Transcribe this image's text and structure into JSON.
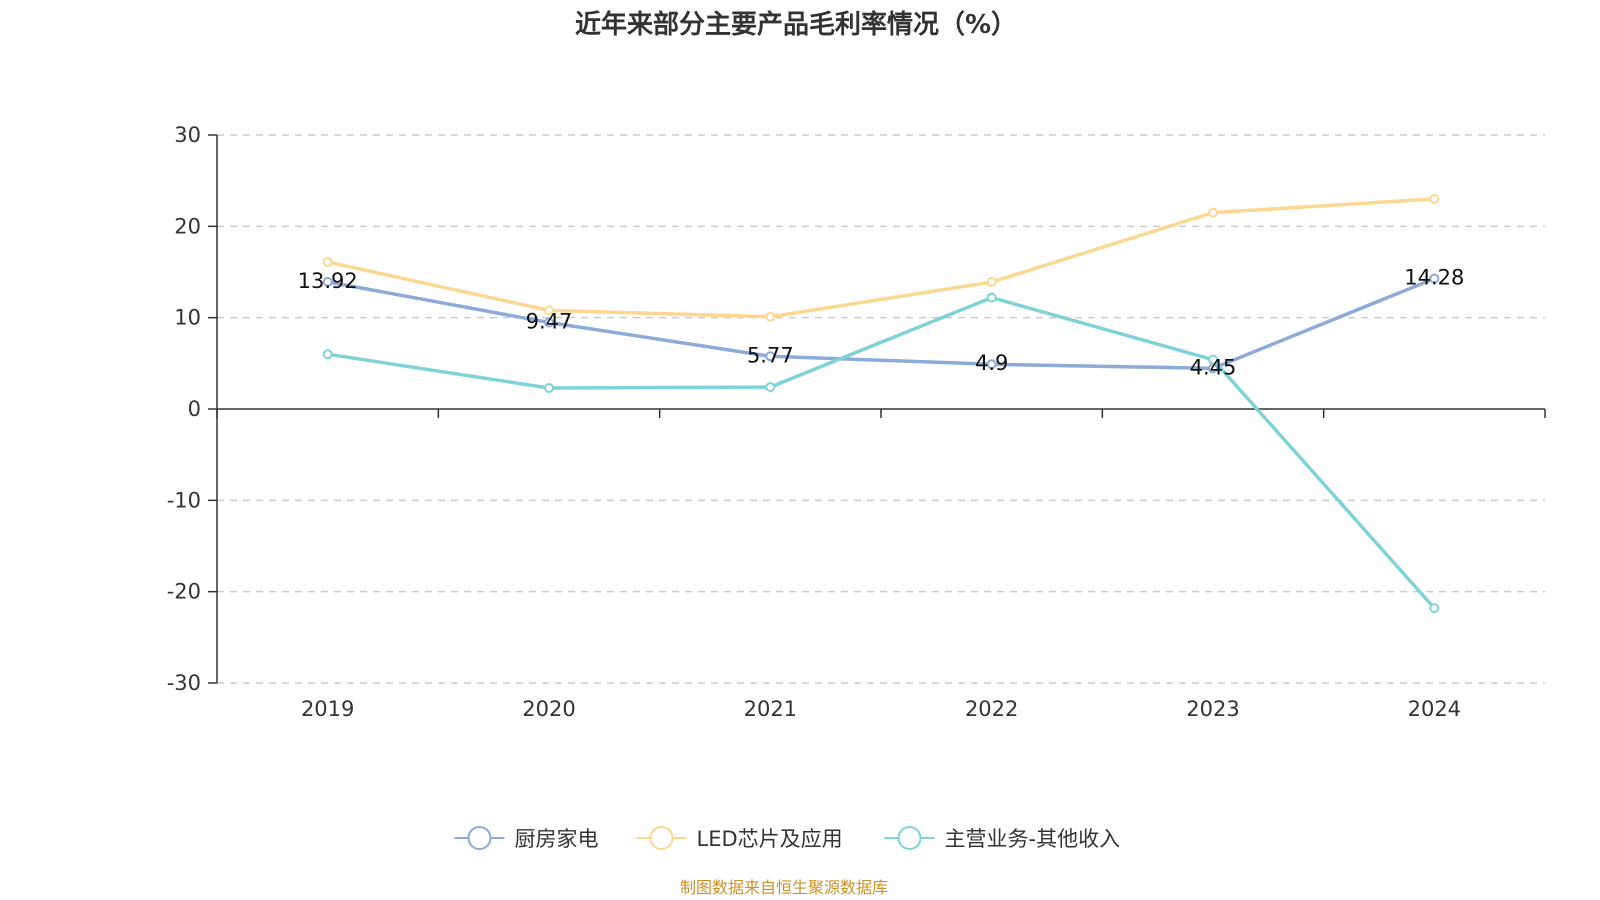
{
  "chart_data": {
    "type": "line",
    "title": "近年来部分主要产品毛利率情况（%）",
    "categories": [
      "2019",
      "2020",
      "2021",
      "2022",
      "2023",
      "2024"
    ],
    "ylim": [
      -30,
      30
    ],
    "yticks": [
      30,
      20,
      10,
      0,
      -10,
      -20,
      -30
    ],
    "grid": true,
    "legend_position": "bottom",
    "series": [
      {
        "name": "厨房家电",
        "color": "#8eaad6",
        "values": [
          13.92,
          9.47,
          5.77,
          4.9,
          4.45,
          14.28
        ],
        "labels": [
          "13.92",
          "9.47",
          "5.77",
          "4.9",
          "4.45",
          "14.28"
        ]
      },
      {
        "name": "LED芯片及应用",
        "color": "#fbd88f",
        "values": [
          16.1,
          10.8,
          10.1,
          13.9,
          21.5,
          23.0
        ]
      },
      {
        "name": "主营业务-其他收入",
        "color": "#7fd3d8",
        "values": [
          6.0,
          2.3,
          2.4,
          12.2,
          5.4,
          -21.8
        ]
      }
    ]
  },
  "source": "制图数据来自恒生聚源数据库"
}
